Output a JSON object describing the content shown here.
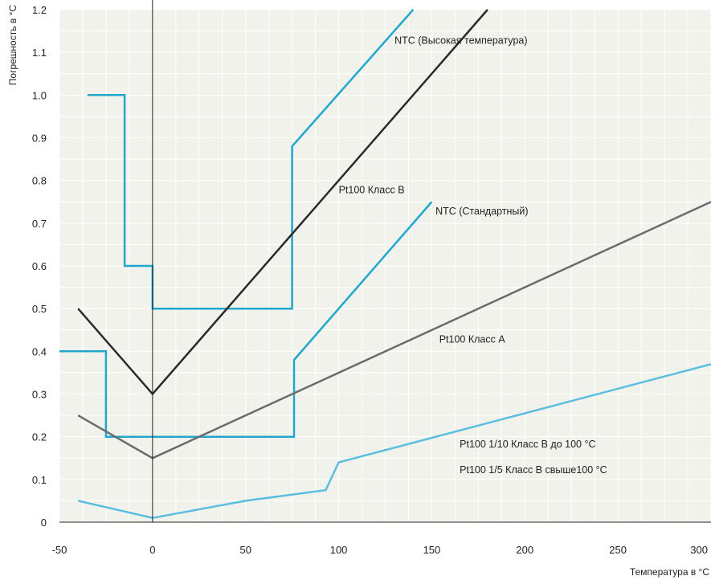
{
  "chart_data": {
    "type": "line",
    "xlabel": "Температура в °C",
    "ylabel": "Погрешность в °C",
    "xlim": [
      -50,
      300
    ],
    "ylim": [
      0,
      1.2
    ],
    "x_ticks": [
      -50,
      0,
      50,
      100,
      150,
      200,
      250,
      300
    ],
    "y_ticks": [
      0,
      0.1,
      0.2,
      0.3,
      0.4,
      0.5,
      0.6,
      0.7,
      0.8,
      0.9,
      1.0,
      1.1,
      1.2
    ],
    "y_tick_labels": [
      "0",
      "0.1",
      "0.2",
      "0.3",
      "0.4",
      "0.5",
      "0.6",
      "0.7",
      "0.8",
      "0.9",
      "1.0",
      "1.1",
      "1.2"
    ],
    "background_color": "#f2f2ec",
    "grid": true,
    "series": [
      {
        "color": "#1fa7d0",
        "points": [
          [
            -35,
            1.0
          ],
          [
            -15,
            1.0
          ],
          [
            -15,
            0.6
          ],
          [
            0,
            0.6
          ],
          [
            0,
            0.5
          ],
          [
            75,
            0.5
          ],
          [
            75,
            0.88
          ],
          [
            140,
            1.2
          ]
        ]
      },
      {
        "color": "#2b2b2b",
        "points": [
          [
            -40,
            0.5
          ],
          [
            0,
            0.3
          ],
          [
            180,
            1.2
          ]
        ]
      },
      {
        "color": "#1fa7d0",
        "points": [
          [
            -50,
            0.4
          ],
          [
            -25,
            0.4
          ],
          [
            -25,
            0.2
          ],
          [
            76,
            0.2
          ],
          [
            76,
            0.38
          ],
          [
            150,
            0.75
          ]
        ]
      },
      {
        "color": "#6b6b6b",
        "points": [
          [
            -40,
            0.25
          ],
          [
            0,
            0.15
          ],
          [
            300,
            0.75
          ]
        ]
      },
      {
        "color": "#5bbde0",
        "points": [
          [
            -40,
            0.05
          ],
          [
            0,
            0.01
          ],
          [
            50,
            0.05
          ],
          [
            93,
            0.075
          ],
          [
            100,
            0.14
          ],
          [
            300,
            0.37
          ]
        ]
      }
    ],
    "annotations": [
      {
        "text": "NTC (Высокая температура)",
        "x": 130,
        "y": 1.12
      },
      {
        "text": "Pt100 Класс B",
        "x": 100,
        "y": 0.77
      },
      {
        "text": "NTC (Стандартный)",
        "x": 152,
        "y": 0.72
      },
      {
        "text": "Pt100 Класс A",
        "x": 154,
        "y": 0.42
      },
      {
        "text": "Pt100 1/10 Класс B до 100 °C",
        "x": 165,
        "y": 0.175
      },
      {
        "text": "Pt100 1/5 Класс B свыше100 °C",
        "x": 165,
        "y": 0.115
      }
    ]
  }
}
